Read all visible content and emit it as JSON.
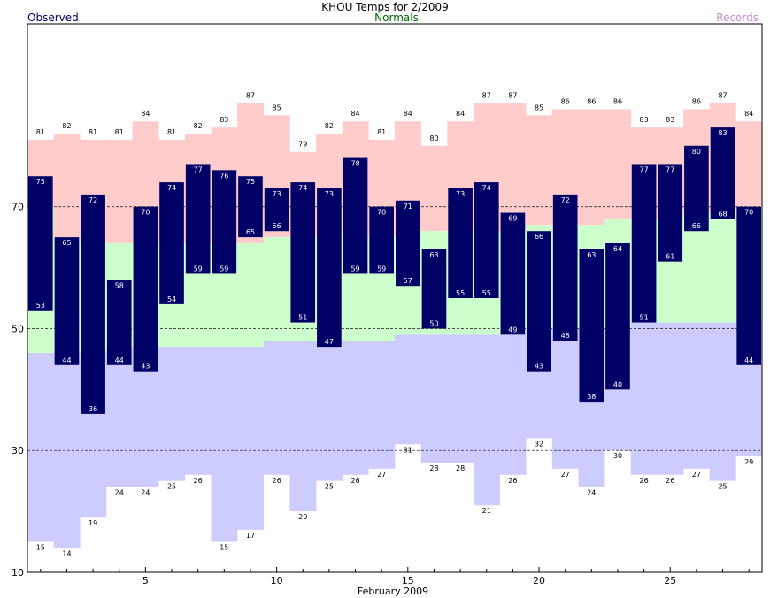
{
  "chart_data": {
    "type": "bar",
    "title": "KHOU Temps for 2/2009",
    "legend_left": "Observed",
    "legend_center": "Normals",
    "legend_right": "Records",
    "xlabel": "February 2009",
    "ylim": [
      10,
      100
    ],
    "xlim": [
      0.5,
      28.5
    ],
    "y_gridlines": [
      30,
      50,
      70
    ],
    "y_ticks": [
      10,
      30,
      50,
      70
    ],
    "x_ticks": [
      5,
      10,
      15,
      20,
      25
    ],
    "colors": {
      "record_band": "#ffcccc",
      "normal_band": "#ccffcc",
      "low_band": "#ccccff",
      "observed_bar": "#000066",
      "title": "#000000",
      "legend_observed": "#000066",
      "legend_normals": "#006600",
      "legend_records": "#cc88cc"
    },
    "days": [
      1,
      2,
      3,
      4,
      5,
      6,
      7,
      8,
      9,
      10,
      11,
      12,
      13,
      14,
      15,
      16,
      17,
      18,
      19,
      20,
      21,
      22,
      23,
      24,
      25,
      26,
      27,
      28
    ],
    "observed_high": [
      75,
      65,
      72,
      58,
      70,
      74,
      77,
      76,
      75,
      73,
      74,
      73,
      78,
      70,
      71,
      63,
      73,
      74,
      69,
      66,
      72,
      63,
      64,
      77,
      77,
      80,
      83,
      70
    ],
    "observed_low": [
      53,
      44,
      36,
      44,
      43,
      54,
      59,
      59,
      65,
      66,
      51,
      47,
      59,
      59,
      57,
      50,
      55,
      55,
      49,
      43,
      48,
      38,
      40,
      51,
      61,
      66,
      68,
      44
    ],
    "record_high": [
      81,
      82,
      81,
      81,
      84,
      81,
      82,
      83,
      87,
      85,
      79,
      82,
      84,
      81,
      84,
      80,
      84,
      87,
      87,
      85,
      86,
      86,
      86,
      83,
      83,
      86,
      87,
      84
    ],
    "record_low": [
      15,
      14,
      19,
      24,
      24,
      25,
      26,
      15,
      17,
      26,
      20,
      25,
      26,
      27,
      31,
      28,
      28,
      21,
      26,
      32,
      27,
      24,
      30,
      26,
      26,
      27,
      25,
      29
    ],
    "normal_high": [
      70,
      65,
      64,
      64,
      64,
      64,
      64,
      64,
      64,
      65,
      65,
      65,
      65,
      65,
      65,
      66,
      66,
      66,
      66,
      67,
      67,
      67,
      68,
      68,
      68,
      69,
      69,
      70
    ],
    "normal_low": [
      46,
      46,
      46,
      47,
      47,
      47,
      47,
      47,
      47,
      48,
      48,
      48,
      48,
      48,
      49,
      49,
      49,
      49,
      49,
      50,
      50,
      50,
      50,
      51,
      51,
      51,
      51,
      51
    ]
  }
}
